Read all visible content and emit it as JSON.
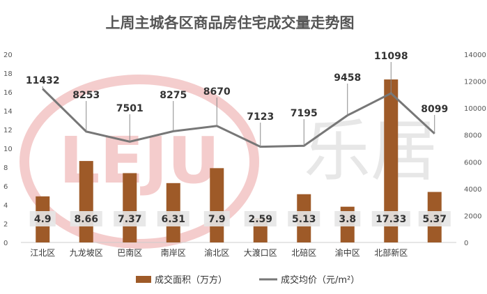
{
  "chart_data": {
    "type": "bar",
    "title": "上周主城各区商品房住宅成交量走势图",
    "categories": [
      "江北区",
      "九龙坡区",
      "巴南区",
      "南岸区",
      "渝北区",
      "大渡口区",
      "北碚区",
      "渝中区",
      "北部新区",
      ""
    ],
    "series": [
      {
        "name": "成交面积（万方）",
        "type": "bar",
        "axis": "left",
        "color": "#9e5a28",
        "values": [
          4.9,
          8.66,
          7.37,
          6.31,
          7.9,
          2.59,
          5.13,
          3.8,
          17.33,
          5.37
        ],
        "labels": [
          "4.9",
          "8.66",
          "7.37",
          "6.31",
          "7.9",
          "2.59",
          "5.13",
          "3.8",
          "17.33",
          "5.37"
        ]
      },
      {
        "name": "成交均价（元/m²）",
        "type": "line",
        "axis": "right",
        "color": "#777777",
        "values": [
          11432,
          8253,
          7501,
          8275,
          8670,
          7123,
          7195,
          9458,
          11098,
          8099
        ],
        "labels": [
          "11432",
          "8253",
          "7501",
          "8275",
          "8670",
          "7123",
          "7195",
          "9458",
          "11098",
          "8099"
        ]
      }
    ],
    "y_left": {
      "min": 0,
      "max": 20,
      "ticks": [
        "0",
        "2",
        "4",
        "6",
        "8",
        "10",
        "12",
        "14",
        "16",
        "18",
        "20"
      ]
    },
    "y_right": {
      "min": 0,
      "max": 14000,
      "ticks": [
        "0",
        "2000",
        "4000",
        "6000",
        "8000",
        "10000",
        "12000",
        "14000"
      ]
    },
    "grid": false,
    "legend_position": "bottom",
    "watermark": {
      "text_latin": "LEJU",
      "text_cn": "乐居"
    }
  }
}
